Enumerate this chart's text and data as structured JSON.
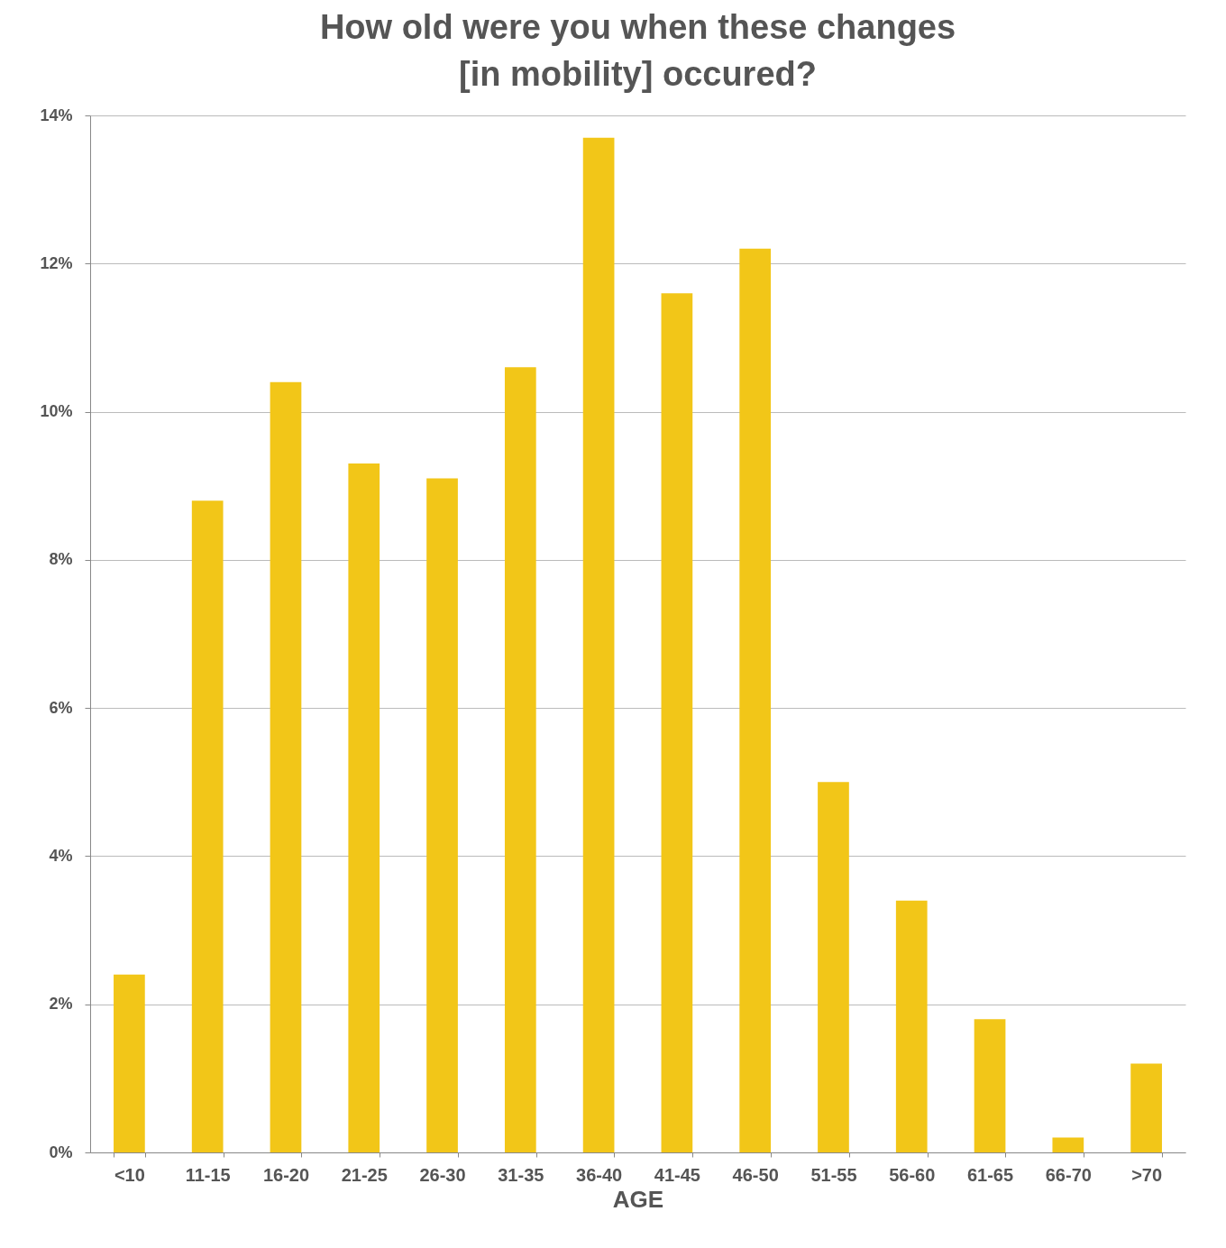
{
  "chart_data": {
    "type": "bar",
    "title": "How old were you when these changes [in mobility] occured?",
    "xlabel": "AGE",
    "categories": [
      "<10",
      "11-15",
      "16-20",
      "21-25",
      "26-30",
      "31-35",
      "36-40",
      "41-45",
      "46-50",
      "51-55",
      "56-60",
      "61-65",
      "66-70",
      ">70"
    ],
    "values": [
      2.4,
      8.8,
      10.4,
      9.3,
      9.1,
      10.6,
      13.7,
      11.6,
      12.2,
      5.0,
      3.4,
      1.8,
      0.2,
      1.2
    ],
    "color": "#f2c618",
    "ylim": [
      0,
      14
    ],
    "yticks": [
      {
        "value": 0,
        "label": "0%"
      },
      {
        "value": 2,
        "label": "2%"
      },
      {
        "value": 4,
        "label": "4%"
      },
      {
        "value": 6,
        "label": "6%"
      },
      {
        "value": 8,
        "label": "8%"
      },
      {
        "value": 10,
        "label": "10%"
      },
      {
        "value": 12,
        "label": "12%"
      },
      {
        "value": 14,
        "label": "14%"
      }
    ],
    "grid": "y"
  }
}
